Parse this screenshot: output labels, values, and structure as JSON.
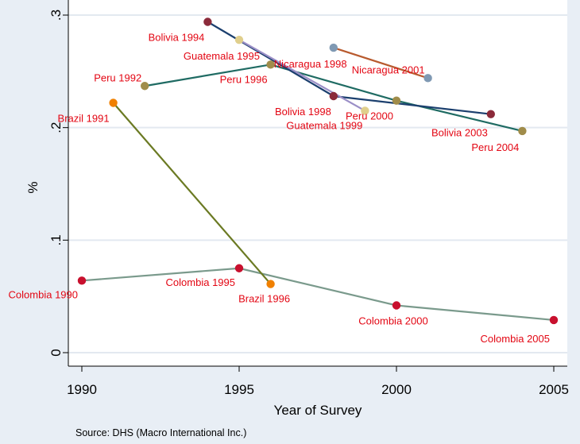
{
  "chart_data": {
    "type": "line",
    "title": "",
    "xlabel": "Year of Survey",
    "ylabel": "%",
    "xlim": [
      1990,
      2005
    ],
    "ylim": [
      0,
      0.3
    ],
    "x_ticks": [
      1990,
      1995,
      2000,
      2005
    ],
    "x_tick_labels": [
      "1990",
      "1995",
      "2000",
      "2005"
    ],
    "y_ticks": [
      0,
      0.1,
      0.2,
      0.3
    ],
    "y_tick_labels": [
      "0",
      ".1",
      ".2",
      ".3"
    ],
    "grid": true,
    "note": "Source: DHS (Macro International Inc.)",
    "series": [
      {
        "color": "#7a9a8c",
        "marker_color": "#c8102e",
        "points": [
          {
            "x": 1990,
            "y": 0.064,
            "label": "Colombia 1990"
          },
          {
            "x": 1995,
            "y": 0.075,
            "label": "Colombia 1995"
          },
          {
            "x": 2000,
            "y": 0.042,
            "label": "Colombia 2000"
          },
          {
            "x": 2005,
            "y": 0.029,
            "label": "Colombia 2005"
          }
        ]
      },
      {
        "color": "#6b7a23",
        "marker_color": "#f08000",
        "points": [
          {
            "x": 1991,
            "y": 0.222,
            "label": "Brazil 1991"
          },
          {
            "x": 1996,
            "y": 0.061,
            "label": "Brazil 1996"
          }
        ]
      },
      {
        "color": "#1f6b63",
        "marker_color": "#a08c4a",
        "points": [
          {
            "x": 1992,
            "y": 0.237,
            "label": "Peru 1992"
          },
          {
            "x": 1996,
            "y": 0.256,
            "label": "Peru 1996"
          },
          {
            "x": 2000,
            "y": 0.224,
            "label": "Peru 2000"
          },
          {
            "x": 2004,
            "y": 0.197,
            "label": "Peru 2004"
          }
        ]
      },
      {
        "color": "#1b3f6e",
        "marker_color": "#8b2a3a",
        "points": [
          {
            "x": 1994,
            "y": 0.294,
            "label": "Bolivia 1994"
          },
          {
            "x": 1998,
            "y": 0.228,
            "label": "Bolivia 1998"
          },
          {
            "x": 2003,
            "y": 0.212,
            "label": "Bolivia 2003"
          }
        ]
      },
      {
        "color": "#9b8fc7",
        "marker_color": "#e0cf8c",
        "points": [
          {
            "x": 1995,
            "y": 0.278,
            "label": "Guatemala 1995"
          },
          {
            "x": 1999,
            "y": 0.215,
            "label": "Guatemala 1999"
          }
        ]
      },
      {
        "color": "#b85a2e",
        "marker_color": "#7f99b3",
        "points": [
          {
            "x": 1998,
            "y": 0.271,
            "label": "Nicaragua 1998"
          },
          {
            "x": 2001,
            "y": 0.244,
            "label": "Nicaragua 2001"
          }
        ]
      }
    ]
  }
}
